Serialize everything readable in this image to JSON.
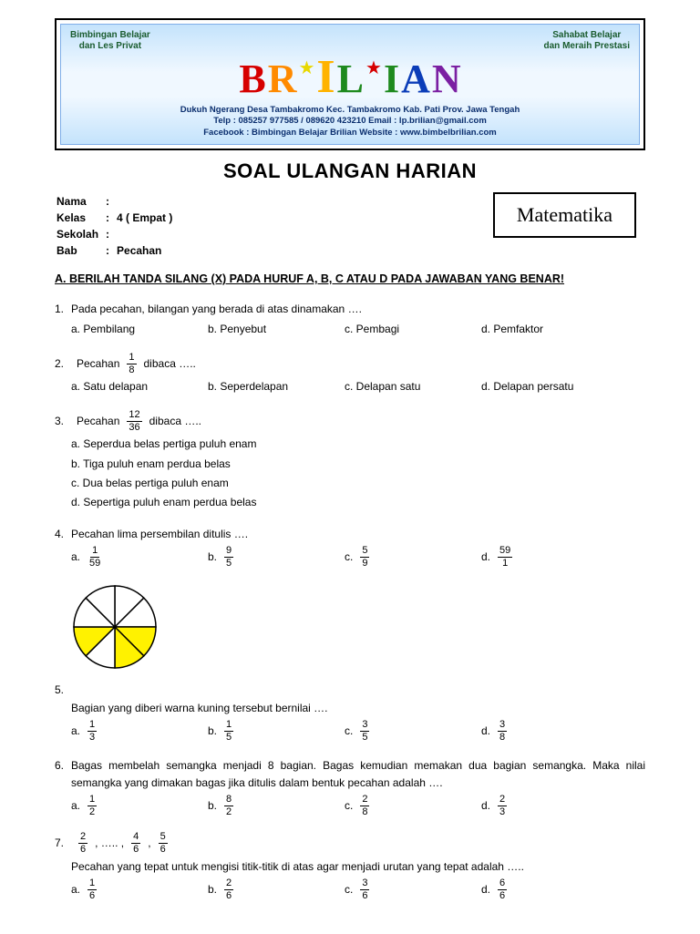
{
  "banner": {
    "left_tag1": "Bimbingan Belajar",
    "left_tag2": "dan Les Privat",
    "right_tag1": "Sahabat Belajar",
    "right_tag2": "dan Meraih Prestasi",
    "letters": [
      {
        "ch": "B",
        "color": "#d60000"
      },
      {
        "ch": "R",
        "color": "#ff8a00"
      },
      {
        "ch": "★",
        "color": "#e8d800",
        "star": true,
        "class": "star"
      },
      {
        "ch": "I",
        "color": "#ffb300",
        "tall": true
      },
      {
        "ch": "L",
        "color": "#1e8a1e"
      },
      {
        "ch": "★",
        "color": "#d60000",
        "star": true,
        "class": "star"
      },
      {
        "ch": "I",
        "color": "#1e8a1e"
      },
      {
        "ch": "A",
        "color": "#0b3db8"
      },
      {
        "ch": "N",
        "color": "#7b1fa2"
      }
    ],
    "addr1": "Dukuh Ngerang Desa Tambakromo Kec. Tambakromo Kab. Pati Prov. Jawa Tengah",
    "addr2": "Telp : 085257 977585 / 089620 423210    Email : lp.brilian@gmail.com",
    "addr3": "Facebook : Bimbingan Belajar Brilian    Website : www.bimbelbrilian.com"
  },
  "title": "SOAL ULANGAN HARIAN",
  "meta": {
    "nama_label": "Nama",
    "nama_val": "",
    "kelas_label": "Kelas",
    "kelas_val": "4 ( Empat )",
    "sekolah_label": "Sekolah",
    "sekolah_val": "",
    "bab_label": "Bab",
    "bab_val": "Pecahan"
  },
  "subject": "Matematika",
  "instruction_prefix": "A.",
  "instruction": "BERILAH TANDA SILANG (X) PADA HURUF A, B, C ATAU D PADA JAWABAN YANG BENAR!",
  "q1": {
    "num": "1.",
    "text": "Pada pecahan, bilangan yang berada di atas dinamakan ….",
    "a": "a. Pembilang",
    "b": "b. Penyebut",
    "c": "c. Pembagi",
    "d": "d. Pemfaktor"
  },
  "q2": {
    "num": "2.",
    "text_pre": "Pecahan",
    "frac": {
      "n": "1",
      "d": "8"
    },
    "text_post": "dibaca …..",
    "a": "a. Satu delapan",
    "b": "b. Seperdelapan",
    "c": "c. Delapan satu",
    "d": "d. Delapan persatu"
  },
  "q3": {
    "num": "3.",
    "text_pre": "Pecahan",
    "frac": {
      "n": "12",
      "d": "36"
    },
    "text_post": "dibaca …..",
    "a": "a. Seperdua belas pertiga puluh enam",
    "b": "b. Tiga puluh enam perdua belas",
    "c": "c. Dua belas pertiga puluh enam",
    "d": "d. Sepertiga puluh enam perdua belas"
  },
  "q4": {
    "num": "4.",
    "text": "Pecahan lima persembilan ditulis ….",
    "a_label": "a.",
    "a_frac": {
      "n": "1",
      "d": "59"
    },
    "b_label": "b.",
    "b_frac": {
      "n": "9",
      "d": "5"
    },
    "c_label": "c.",
    "c_frac": {
      "n": "5",
      "d": "9"
    },
    "d_label": "d.",
    "d_frac": {
      "n": "59",
      "d": "1"
    }
  },
  "q5": {
    "num": "5.",
    "pie": {
      "slices": 8,
      "filled": [
        2,
        3,
        5
      ],
      "fill_color": "#fff200",
      "empty_color": "#ffffff",
      "stroke": "#000000",
      "radius": 45
    },
    "text": "Bagian yang diberi warna kuning tersebut bernilai ….",
    "a_label": "a.",
    "a_frac": {
      "n": "1",
      "d": "3"
    },
    "b_label": "b.",
    "b_frac": {
      "n": "1",
      "d": "5"
    },
    "c_label": "c.",
    "c_frac": {
      "n": "3",
      "d": "5"
    },
    "d_label": "d.",
    "d_frac": {
      "n": "3",
      "d": "8"
    }
  },
  "q6": {
    "num": "6.",
    "text": "Bagas membelah semangka menjadi 8 bagian. Bagas kemudian memakan dua bagian semangka. Maka nilai semangka yang dimakan bagas jika ditulis dalam bentuk pecahan adalah ….",
    "a_label": "a.",
    "a_frac": {
      "n": "1",
      "d": "2"
    },
    "b_label": "b.",
    "b_frac": {
      "n": "8",
      "d": "2"
    },
    "c_label": "c.",
    "c_frac": {
      "n": "2",
      "d": "8"
    },
    "d_label": "d.",
    "d_frac": {
      "n": "2",
      "d": "3"
    }
  },
  "q7": {
    "num": "7.",
    "seq_f1": {
      "n": "2",
      "d": "6"
    },
    "seq_dots": ", ….. ,",
    "seq_f2": {
      "n": "4",
      "d": "6"
    },
    "seq_comma": ",",
    "seq_f3": {
      "n": "5",
      "d": "6"
    },
    "text": "Pecahan yang tepat untuk mengisi titik-titik di atas agar menjadi urutan yang tepat adalah …..",
    "a_label": "a.",
    "a_frac": {
      "n": "1",
      "d": "6"
    },
    "b_label": "b.",
    "b_frac": {
      "n": "2",
      "d": "6"
    },
    "c_label": "c.",
    "c_frac": {
      "n": "3",
      "d": "6"
    },
    "d_label": "d.",
    "d_frac": {
      "n": "6",
      "d": "6"
    }
  }
}
